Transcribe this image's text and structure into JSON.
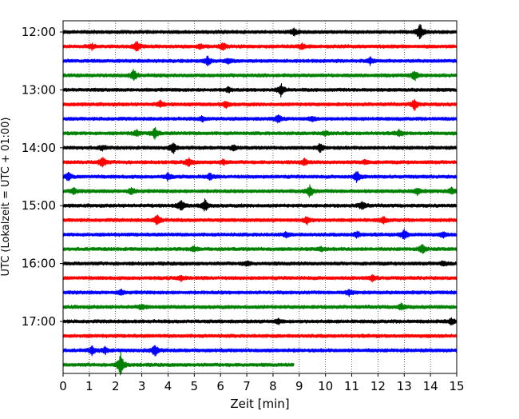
{
  "chart_data": {
    "type": "line",
    "title": "",
    "xlabel": "Zeit  [min]",
    "ylabel": "UTC (Lokalzeit = UTC + 01:00)",
    "xlim": [
      0,
      15
    ],
    "x_ticks": [
      "0",
      "1",
      "2",
      "3",
      "4",
      "5",
      "6",
      "7",
      "8",
      "9",
      "10",
      "11",
      "12",
      "13",
      "14",
      "15"
    ],
    "y_ticks": [
      "12:00",
      "13:00",
      "14:00",
      "15:00",
      "16:00",
      "17:00"
    ],
    "grid": "vertical dotted at each minute",
    "colors_cycle": [
      "#000000",
      "#ff0000",
      "#0000ff",
      "#008000"
    ],
    "series": [
      {
        "start": "12:00",
        "color": "#000000",
        "x_end": 15,
        "events": [
          [
            8.8,
            5
          ],
          [
            13.6,
            12
          ]
        ]
      },
      {
        "start": "12:15",
        "color": "#ff0000",
        "x_end": 15,
        "events": [
          [
            1.1,
            3
          ],
          [
            2.8,
            7
          ],
          [
            5.2,
            3
          ],
          [
            6.1,
            4
          ],
          [
            9.1,
            3
          ]
        ]
      },
      {
        "start": "12:30",
        "color": "#0000ff",
        "x_end": 15,
        "events": [
          [
            5.5,
            6
          ],
          [
            6.3,
            3
          ],
          [
            11.7,
            4
          ]
        ]
      },
      {
        "start": "12:45",
        "color": "#008000",
        "x_end": 15,
        "events": [
          [
            2.7,
            7
          ],
          [
            13.4,
            6
          ]
        ]
      },
      {
        "start": "13:00",
        "color": "#000000",
        "x_end": 15,
        "events": [
          [
            6.3,
            3
          ],
          [
            8.3,
            8
          ]
        ]
      },
      {
        "start": "13:15",
        "color": "#ff0000",
        "x_end": 15,
        "events": [
          [
            3.7,
            4
          ],
          [
            6.2,
            4
          ],
          [
            13.4,
            7
          ]
        ]
      },
      {
        "start": "13:30",
        "color": "#0000ff",
        "x_end": 15,
        "events": [
          [
            5.3,
            3
          ],
          [
            8.2,
            5
          ],
          [
            9.5,
            3
          ]
        ]
      },
      {
        "start": "13:45",
        "color": "#008000",
        "x_end": 15,
        "events": [
          [
            2.8,
            4
          ],
          [
            3.5,
            7
          ],
          [
            10.0,
            3
          ],
          [
            12.8,
            4
          ]
        ]
      },
      {
        "start": "14:00",
        "color": "#000000",
        "x_end": 15,
        "events": [
          [
            1.5,
            3
          ],
          [
            4.2,
            7
          ],
          [
            6.5,
            3
          ],
          [
            9.8,
            5
          ]
        ]
      },
      {
        "start": "14:15",
        "color": "#ff0000",
        "x_end": 15,
        "events": [
          [
            1.5,
            7
          ],
          [
            4.8,
            5
          ],
          [
            6.1,
            3
          ],
          [
            9.2,
            4
          ],
          [
            11.5,
            3
          ]
        ]
      },
      {
        "start": "14:30",
        "color": "#0000ff",
        "x_end": 15,
        "events": [
          [
            0.2,
            5
          ],
          [
            4.0,
            4
          ],
          [
            5.6,
            4
          ],
          [
            11.2,
            7
          ]
        ]
      },
      {
        "start": "14:45",
        "color": "#008000",
        "x_end": 15,
        "events": [
          [
            0.4,
            4
          ],
          [
            2.6,
            4
          ],
          [
            9.4,
            8
          ],
          [
            13.5,
            4
          ],
          [
            14.8,
            4
          ]
        ]
      },
      {
        "start": "15:00",
        "color": "#000000",
        "x_end": 15,
        "events": [
          [
            4.5,
            7
          ],
          [
            5.4,
            8
          ],
          [
            11.4,
            6
          ]
        ]
      },
      {
        "start": "15:15",
        "color": "#ff0000",
        "x_end": 15,
        "events": [
          [
            3.6,
            7
          ],
          [
            9.3,
            5
          ],
          [
            12.2,
            4
          ]
        ]
      },
      {
        "start": "15:30",
        "color": "#0000ff",
        "x_end": 15,
        "events": [
          [
            8.5,
            3
          ],
          [
            11.2,
            4
          ],
          [
            13.0,
            7
          ],
          [
            14.5,
            3
          ]
        ]
      },
      {
        "start": "15:45",
        "color": "#008000",
        "x_end": 15,
        "events": [
          [
            5.0,
            3
          ],
          [
            9.8,
            3
          ],
          [
            13.7,
            6
          ]
        ]
      },
      {
        "start": "16:00",
        "color": "#000000",
        "x_end": 15,
        "events": [
          [
            7.0,
            3
          ],
          [
            14.5,
            3
          ]
        ]
      },
      {
        "start": "16:15",
        "color": "#ff0000",
        "x_end": 15,
        "events": [
          [
            4.5,
            3
          ],
          [
            11.8,
            4
          ]
        ]
      },
      {
        "start": "16:30",
        "color": "#0000ff",
        "x_end": 15,
        "events": [
          [
            2.2,
            3
          ],
          [
            10.9,
            4
          ]
        ]
      },
      {
        "start": "16:45",
        "color": "#008000",
        "x_end": 15,
        "events": [
          [
            3.0,
            3
          ],
          [
            12.9,
            4
          ]
        ]
      },
      {
        "start": "17:00",
        "color": "#000000",
        "x_end": 15,
        "events": [
          [
            8.2,
            3
          ],
          [
            14.8,
            4
          ]
        ]
      },
      {
        "start": "17:15",
        "color": "#ff0000",
        "x_end": 15,
        "events": []
      },
      {
        "start": "17:30",
        "color": "#0000ff",
        "x_end": 15,
        "events": [
          [
            1.1,
            5
          ],
          [
            1.6,
            4
          ],
          [
            3.5,
            8
          ]
        ]
      },
      {
        "start": "17:45",
        "color": "#008000",
        "x_end": 8.8,
        "events": [
          [
            2.2,
            15
          ]
        ]
      }
    ]
  }
}
